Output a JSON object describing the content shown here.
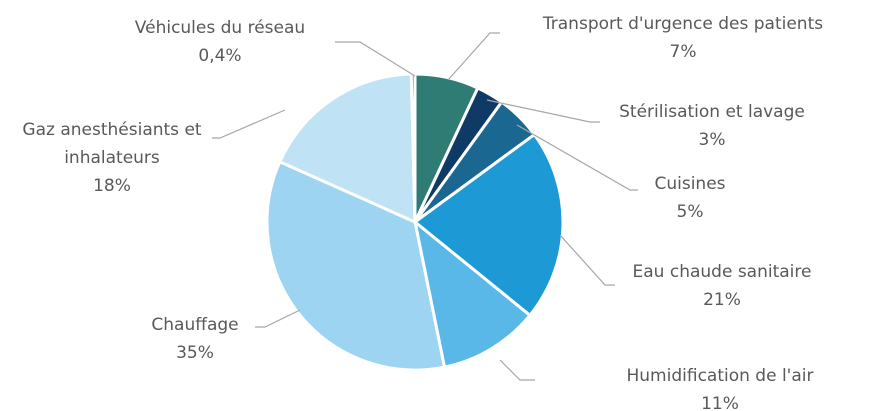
{
  "chart_data": {
    "type": "pie",
    "categories": [
      "Transport d'urgence des patients",
      "Stérilisation et lavage",
      "Cuisines",
      "Eau chaude sanitaire",
      "Humidification de l'air",
      "Chauffage",
      "Gaz anesthésiants et inhalateurs",
      "Véhicules du réseau"
    ],
    "values": [
      7,
      3,
      5,
      21,
      11,
      35,
      18,
      0.4
    ],
    "value_labels": [
      "7%",
      "3%",
      "5%",
      "21%",
      "11%",
      "35%",
      "18%",
      "0,4%"
    ],
    "colors": [
      "#2f7c74",
      "#0f3a66",
      "#1a6792",
      "#1d9ad6",
      "#5ab8e8",
      "#9dd4f1",
      "#bfe3f5",
      "#2f7c74"
    ]
  }
}
